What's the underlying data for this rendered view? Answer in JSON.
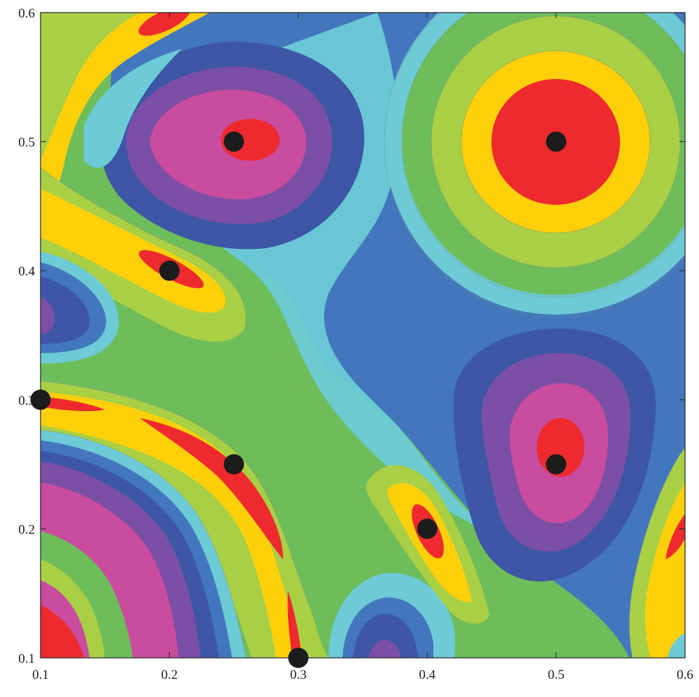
{
  "chart_data": {
    "type": "contour",
    "title": "",
    "xlabel": "",
    "ylabel": "",
    "xlim": [
      0.1,
      0.6
    ],
    "ylim": [
      0.1,
      0.6
    ],
    "x_ticks": [
      0.1,
      0.2,
      0.3,
      0.4,
      0.5,
      0.6
    ],
    "y_ticks": [
      0.1,
      0.2,
      0.3,
      0.4,
      0.5,
      0.6
    ],
    "x_tick_labels": [
      "0.1",
      "0.2",
      "0.3",
      "0.4",
      "0.5",
      "0.6"
    ],
    "y_tick_labels": [
      "0.1",
      "0.2",
      "0.3",
      "0.4",
      "0.5",
      "0.6"
    ],
    "grid": false,
    "legend": "none",
    "contour_levels_palette": [
      "#5b3f9e",
      "#7a4fa5",
      "#c94c9e",
      "#3d56a6",
      "#4377bd",
      "#6ccbd6",
      "#6dbd5a",
      "#a9cf45",
      "#ffcf0a",
      "#ee2a2e"
    ],
    "points": [
      {
        "x": 0.25,
        "y": 0.5
      },
      {
        "x": 0.5,
        "y": 0.5
      },
      {
        "x": 0.2,
        "y": 0.4
      },
      {
        "x": 0.1,
        "y": 0.3
      },
      {
        "x": 0.25,
        "y": 0.25
      },
      {
        "x": 0.5,
        "y": 0.25
      },
      {
        "x": 0.4,
        "y": 0.2
      },
      {
        "x": 0.3,
        "y": 0.1
      }
    ],
    "point_color": "#1c1c1c"
  }
}
